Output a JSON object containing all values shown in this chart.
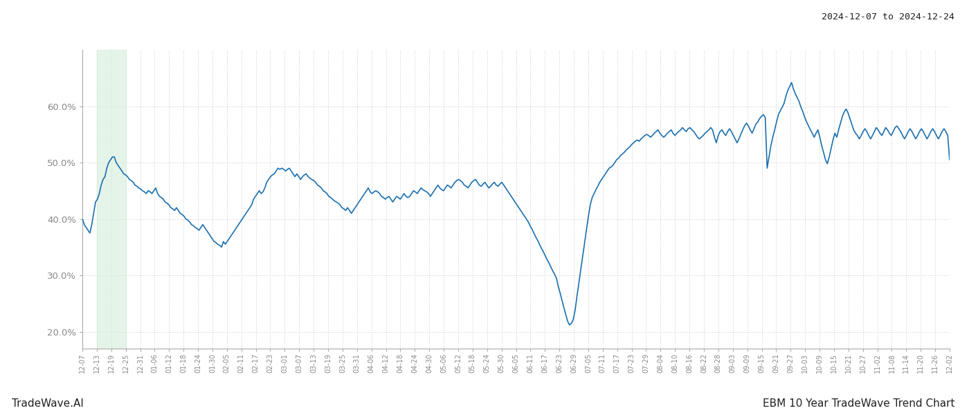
{
  "date_range_text": "2024-12-07 to 2024-12-24",
  "bottom_left_text": "TradeWave.AI",
  "bottom_right_text": "EBM 10 Year TradeWave Trend Chart",
  "ylim": [
    0.17,
    0.7
  ],
  "yticks": [
    0.2,
    0.3,
    0.4,
    0.5,
    0.6
  ],
  "line_color": "#1a6faf",
  "line_width": 1.2,
  "shade_color": "#d4edda",
  "shade_alpha": 0.6,
  "background_color": "#ffffff",
  "grid_color": "#cccccc",
  "grid_style": ":",
  "tick_label_color": "#888888",
  "x_labels": [
    "12-07",
    "12-13",
    "12-19",
    "12-25",
    "12-31",
    "01-06",
    "01-12",
    "01-18",
    "01-24",
    "01-30",
    "02-05",
    "02-11",
    "02-17",
    "02-23",
    "03-01",
    "03-07",
    "03-13",
    "03-19",
    "03-25",
    "03-31",
    "04-06",
    "04-12",
    "04-18",
    "04-24",
    "04-30",
    "05-06",
    "05-12",
    "05-18",
    "05-24",
    "05-30",
    "06-05",
    "06-11",
    "06-17",
    "06-23",
    "06-29",
    "07-05",
    "07-11",
    "07-17",
    "07-23",
    "07-29",
    "08-04",
    "08-10",
    "08-16",
    "08-22",
    "08-28",
    "09-03",
    "09-09",
    "09-15",
    "09-21",
    "09-27",
    "10-03",
    "10-09",
    "10-15",
    "10-21",
    "10-27",
    "11-02",
    "11-08",
    "11-14",
    "11-20",
    "11-26",
    "12-02"
  ],
  "shade_x_start_label": "12-13",
  "shade_x_end_label": "12-25",
  "y_values": [
    0.4,
    0.39,
    0.385,
    0.38,
    0.375,
    0.39,
    0.41,
    0.43,
    0.435,
    0.445,
    0.46,
    0.47,
    0.475,
    0.49,
    0.5,
    0.505,
    0.51,
    0.51,
    0.5,
    0.495,
    0.49,
    0.485,
    0.48,
    0.478,
    0.475,
    0.47,
    0.468,
    0.465,
    0.46,
    0.458,
    0.455,
    0.453,
    0.45,
    0.448,
    0.445,
    0.45,
    0.448,
    0.445,
    0.45,
    0.455,
    0.445,
    0.44,
    0.438,
    0.435,
    0.43,
    0.428,
    0.425,
    0.42,
    0.418,
    0.415,
    0.42,
    0.415,
    0.41,
    0.408,
    0.405,
    0.4,
    0.398,
    0.395,
    0.39,
    0.388,
    0.385,
    0.383,
    0.38,
    0.385,
    0.39,
    0.385,
    0.38,
    0.375,
    0.37,
    0.365,
    0.36,
    0.358,
    0.355,
    0.353,
    0.35,
    0.36,
    0.355,
    0.36,
    0.365,
    0.37,
    0.375,
    0.38,
    0.385,
    0.39,
    0.395,
    0.4,
    0.405,
    0.41,
    0.415,
    0.42,
    0.425,
    0.435,
    0.44,
    0.445,
    0.45,
    0.445,
    0.448,
    0.455,
    0.465,
    0.47,
    0.475,
    0.478,
    0.48,
    0.485,
    0.49,
    0.488,
    0.49,
    0.488,
    0.485,
    0.488,
    0.49,
    0.485,
    0.48,
    0.475,
    0.48,
    0.475,
    0.47,
    0.475,
    0.478,
    0.48,
    0.475,
    0.472,
    0.47,
    0.468,
    0.465,
    0.46,
    0.458,
    0.455,
    0.45,
    0.448,
    0.445,
    0.44,
    0.438,
    0.435,
    0.432,
    0.43,
    0.428,
    0.425,
    0.42,
    0.418,
    0.415,
    0.42,
    0.415,
    0.41,
    0.415,
    0.42,
    0.425,
    0.43,
    0.435,
    0.44,
    0.445,
    0.45,
    0.455,
    0.448,
    0.445,
    0.448,
    0.45,
    0.448,
    0.445,
    0.44,
    0.438,
    0.435,
    0.438,
    0.44,
    0.435,
    0.43,
    0.435,
    0.44,
    0.438,
    0.435,
    0.44,
    0.445,
    0.44,
    0.438,
    0.44,
    0.445,
    0.45,
    0.448,
    0.445,
    0.45,
    0.455,
    0.452,
    0.45,
    0.448,
    0.445,
    0.44,
    0.445,
    0.45,
    0.455,
    0.46,
    0.455,
    0.452,
    0.45,
    0.455,
    0.46,
    0.458,
    0.455,
    0.46,
    0.465,
    0.468,
    0.47,
    0.468,
    0.465,
    0.46,
    0.458,
    0.455,
    0.46,
    0.465,
    0.468,
    0.47,
    0.465,
    0.46,
    0.458,
    0.462,
    0.465,
    0.46,
    0.455,
    0.458,
    0.462,
    0.465,
    0.46,
    0.458,
    0.462,
    0.465,
    0.46,
    0.455,
    0.45,
    0.445,
    0.44,
    0.435,
    0.43,
    0.425,
    0.42,
    0.415,
    0.41,
    0.405,
    0.4,
    0.395,
    0.388,
    0.382,
    0.375,
    0.368,
    0.362,
    0.355,
    0.348,
    0.342,
    0.335,
    0.328,
    0.322,
    0.315,
    0.308,
    0.302,
    0.295,
    0.28,
    0.268,
    0.255,
    0.242,
    0.23,
    0.218,
    0.212,
    0.215,
    0.222,
    0.24,
    0.265,
    0.288,
    0.312,
    0.335,
    0.358,
    0.382,
    0.405,
    0.425,
    0.438,
    0.445,
    0.452,
    0.458,
    0.465,
    0.47,
    0.475,
    0.48,
    0.485,
    0.49,
    0.492,
    0.495,
    0.5,
    0.505,
    0.508,
    0.512,
    0.515,
    0.518,
    0.522,
    0.525,
    0.528,
    0.532,
    0.535,
    0.538,
    0.54,
    0.538,
    0.542,
    0.545,
    0.548,
    0.55,
    0.548,
    0.545,
    0.548,
    0.552,
    0.555,
    0.558,
    0.552,
    0.548,
    0.545,
    0.548,
    0.552,
    0.555,
    0.558,
    0.552,
    0.548,
    0.552,
    0.555,
    0.558,
    0.562,
    0.558,
    0.555,
    0.56,
    0.562,
    0.558,
    0.555,
    0.55,
    0.545,
    0.542,
    0.545,
    0.548,
    0.552,
    0.555,
    0.558,
    0.562,
    0.558,
    0.545,
    0.535,
    0.548,
    0.555,
    0.558,
    0.552,
    0.548,
    0.555,
    0.56,
    0.555,
    0.548,
    0.542,
    0.535,
    0.542,
    0.55,
    0.558,
    0.565,
    0.57,
    0.565,
    0.558,
    0.552,
    0.56,
    0.568,
    0.572,
    0.578,
    0.582,
    0.585,
    0.58,
    0.49,
    0.51,
    0.53,
    0.545,
    0.558,
    0.572,
    0.585,
    0.592,
    0.598,
    0.605,
    0.618,
    0.628,
    0.635,
    0.642,
    0.63,
    0.622,
    0.615,
    0.608,
    0.598,
    0.59,
    0.58,
    0.572,
    0.565,
    0.558,
    0.552,
    0.545,
    0.552,
    0.558,
    0.545,
    0.53,
    0.518,
    0.505,
    0.498,
    0.51,
    0.525,
    0.54,
    0.552,
    0.545,
    0.558,
    0.57,
    0.582,
    0.59,
    0.595,
    0.588,
    0.578,
    0.568,
    0.558,
    0.552,
    0.548,
    0.542,
    0.548,
    0.555,
    0.56,
    0.555,
    0.548,
    0.542,
    0.548,
    0.555,
    0.562,
    0.558,
    0.552,
    0.548,
    0.555,
    0.562,
    0.558,
    0.552,
    0.548,
    0.555,
    0.562,
    0.565,
    0.56,
    0.555,
    0.548,
    0.542,
    0.548,
    0.555,
    0.56,
    0.555,
    0.548,
    0.542,
    0.548,
    0.555,
    0.56,
    0.555,
    0.548,
    0.542,
    0.548,
    0.555,
    0.56,
    0.555,
    0.548,
    0.542,
    0.548,
    0.555,
    0.56,
    0.555,
    0.548,
    0.505
  ]
}
